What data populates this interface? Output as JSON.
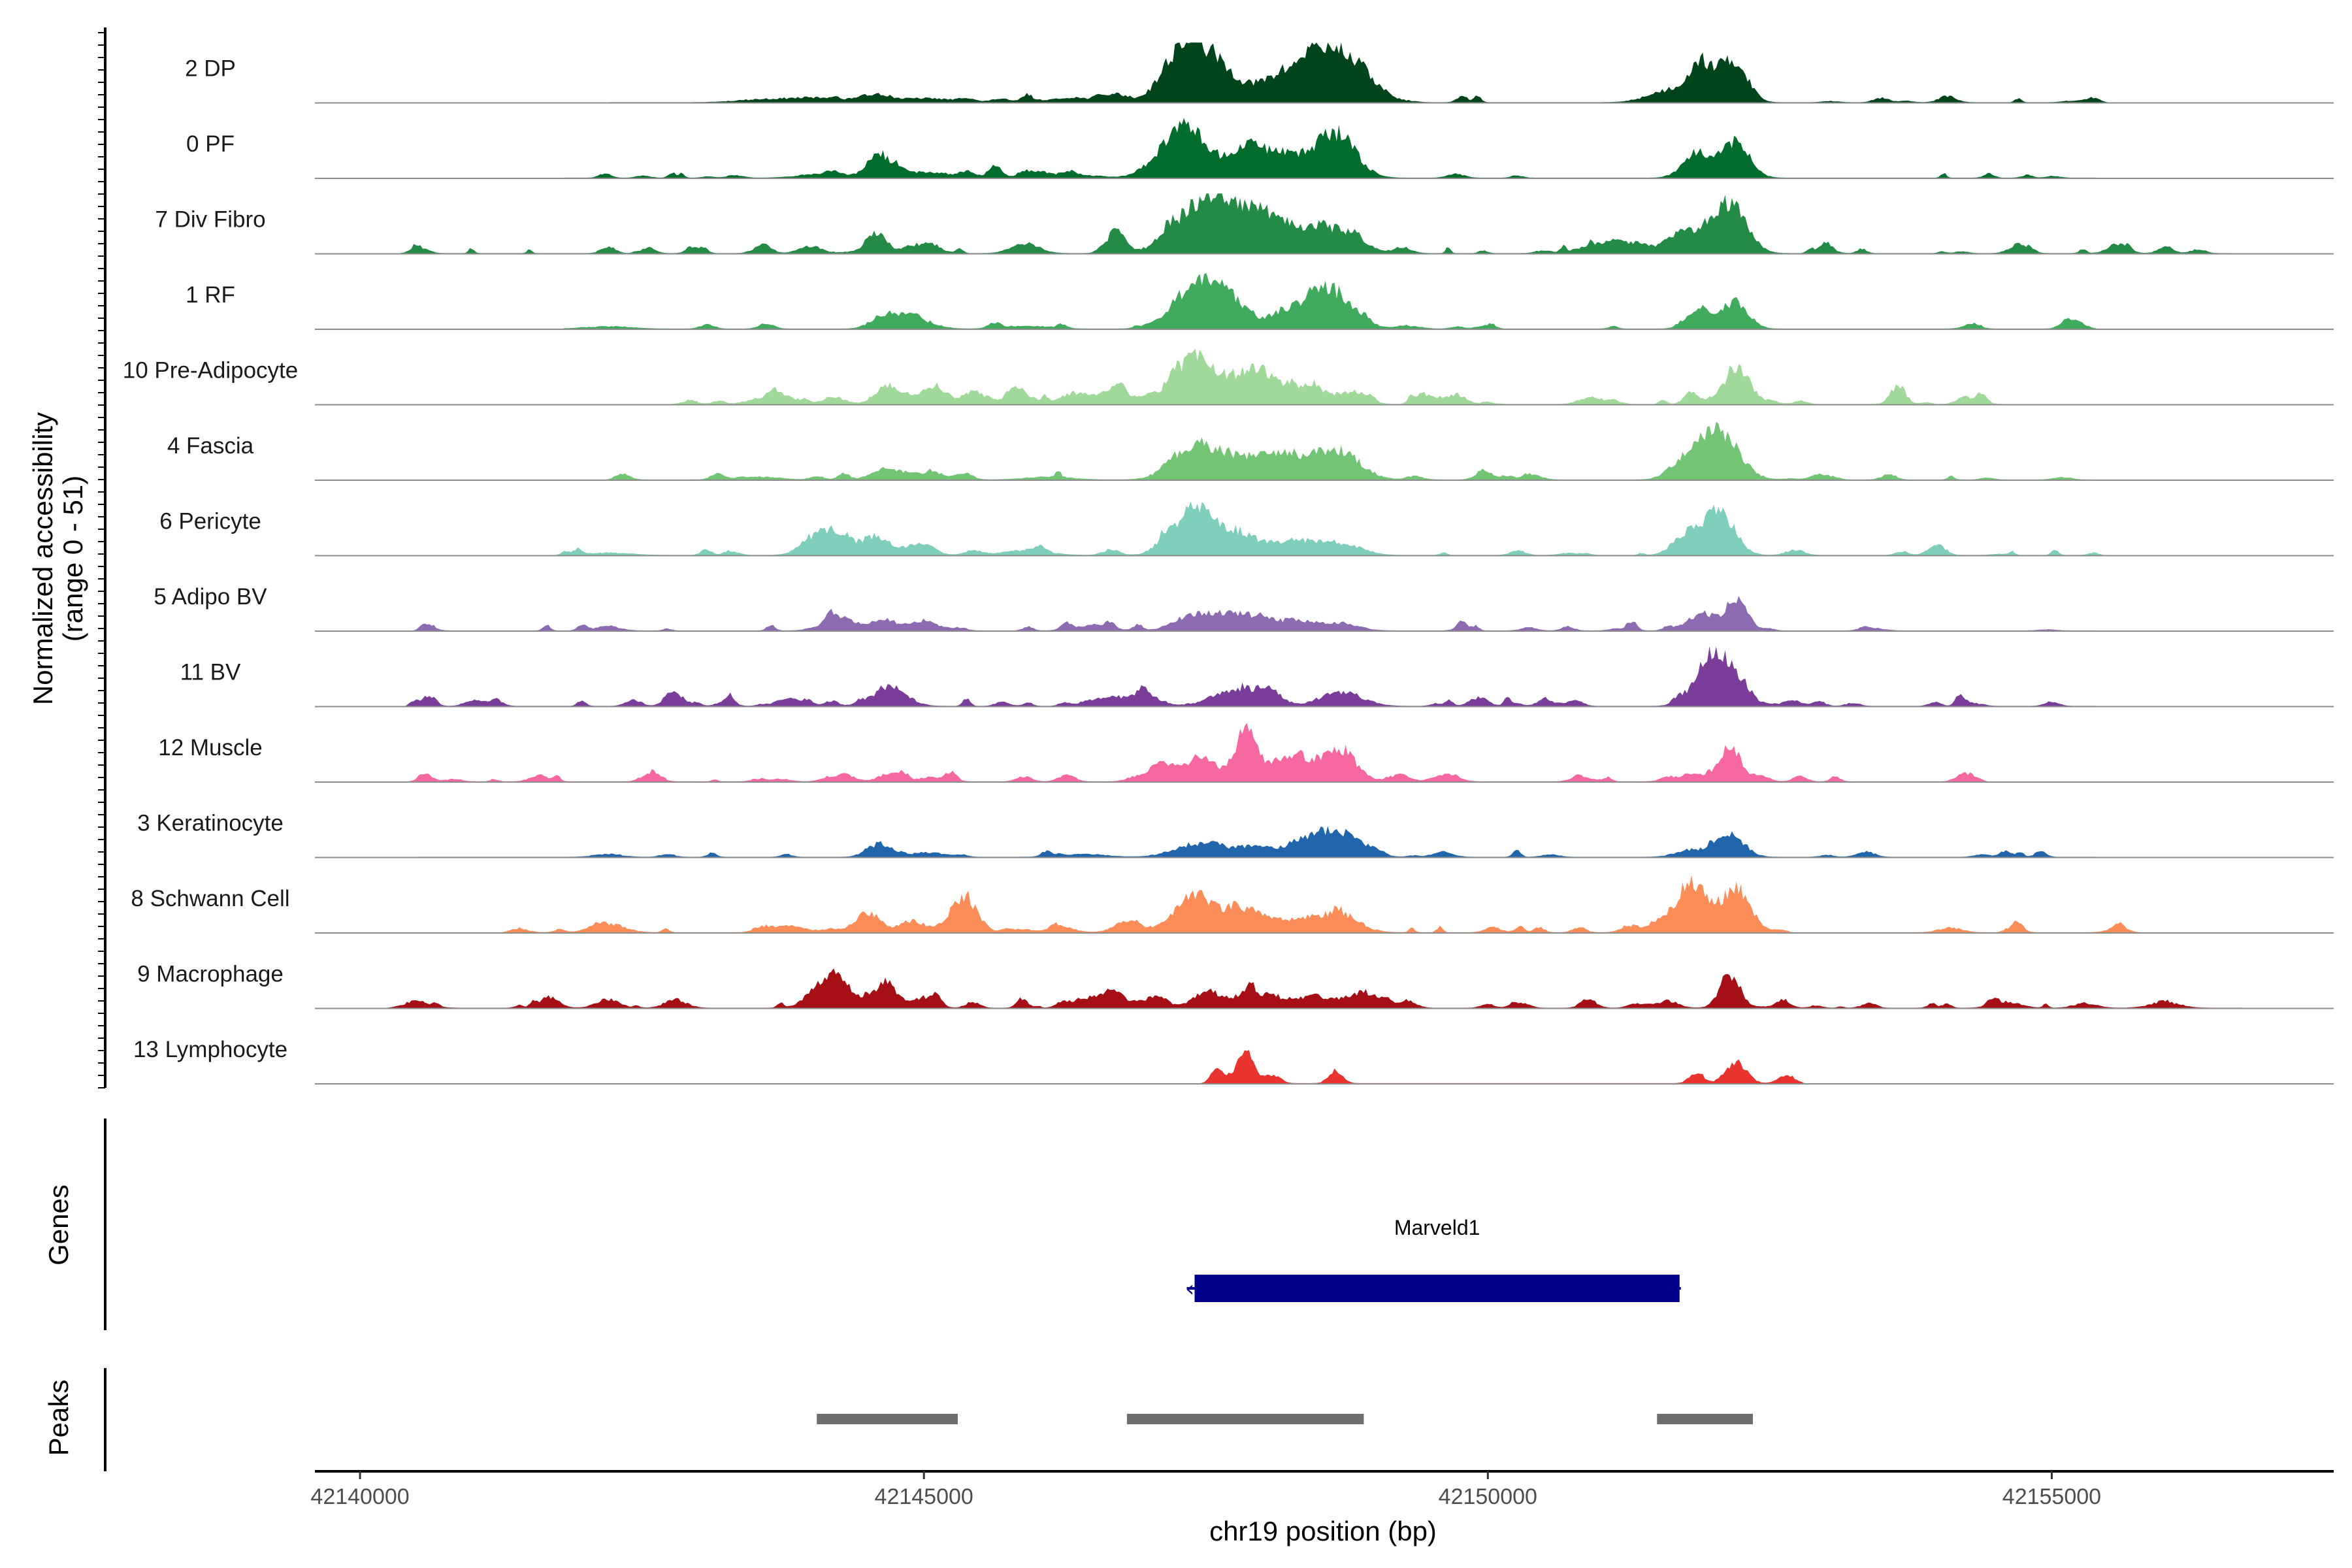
{
  "chart_data": {
    "type": "area",
    "title": "",
    "xlabel": "chr19 position (bp)",
    "ylabel_line1": "Normalized accessibility",
    "ylabel_line2": "(range 0 - 51)",
    "y_range": [
      0,
      51
    ],
    "xlim": [
      42139600,
      42157500
    ],
    "x_ticks": [
      42140000,
      42145000,
      42150000,
      42155000
    ],
    "x_tick_labels": [
      "42140000",
      "42145000",
      "42150000",
      "42155000"
    ],
    "genes_label": "Genes",
    "peaks_label": "Peaks",
    "tracks": [
      {
        "name": "2 DP",
        "color": "#00441b",
        "max": 30,
        "peaks": [
          [
            42144580,
            0.13,
            110
          ],
          [
            42145000,
            0.07,
            250
          ],
          [
            42147300,
            0.9,
            180
          ],
          [
            42147600,
            0.55,
            200
          ],
          [
            42148200,
            0.48,
            200
          ],
          [
            42148600,
            0.85,
            190
          ],
          [
            42148900,
            0.35,
            150
          ],
          [
            42151900,
            0.62,
            120
          ],
          [
            42152200,
            0.68,
            110
          ],
          [
            42151600,
            0.2,
            180
          ],
          [
            42144000,
            0.08,
            250
          ],
          [
            42146200,
            0.05,
            250
          ],
          [
            42143500,
            0.04,
            200
          ]
        ],
        "baseline": [
          42142200,
          42155400
        ],
        "spikes": 28
      },
      {
        "name": "0 PF",
        "color": "#006d2c",
        "max": 30,
        "peaks": [
          [
            42144580,
            0.35,
            90
          ],
          [
            42145000,
            0.1,
            250
          ],
          [
            42147300,
            0.92,
            190
          ],
          [
            42147850,
            0.45,
            170
          ],
          [
            42148200,
            0.4,
            180
          ],
          [
            42148650,
            0.78,
            170
          ],
          [
            42152200,
            0.62,
            120
          ],
          [
            42151850,
            0.4,
            120
          ],
          [
            42144100,
            0.07,
            200
          ],
          [
            42146300,
            0.05,
            250
          ]
        ],
        "baseline": [
          42141800,
          42155400
        ],
        "spikes": 26
      },
      {
        "name": "7 Div Fibro",
        "color": "#238b45",
        "max": 30,
        "peaks": [
          [
            42144580,
            0.3,
            80
          ],
          [
            42144950,
            0.15,
            140
          ],
          [
            42147500,
            0.95,
            250
          ],
          [
            42147950,
            0.55,
            160
          ],
          [
            42148300,
            0.42,
            180
          ],
          [
            42148700,
            0.38,
            180
          ],
          [
            42152150,
            0.9,
            140
          ],
          [
            42151750,
            0.4,
            150
          ],
          [
            42151100,
            0.2,
            220
          ],
          [
            42146700,
            0.28,
            80
          ],
          [
            42145900,
            0.18,
            120
          ],
          [
            42142200,
            0.12,
            60
          ],
          [
            42140500,
            0.06,
            80
          ],
          [
            42144000,
            0.12,
            100
          ],
          [
            42154700,
            0.1,
            80
          ],
          [
            42156300,
            0.07,
            60
          ],
          [
            42155600,
            0.08,
            60
          ]
        ],
        "baseline": [
          42140400,
          42156600
        ],
        "spikes": 50
      },
      {
        "name": "1 RF",
        "color": "#41ab5d",
        "max": 30,
        "peaks": [
          [
            42144650,
            0.25,
            110
          ],
          [
            42144950,
            0.15,
            140
          ],
          [
            42147400,
            0.72,
            190
          ],
          [
            42147700,
            0.45,
            160
          ],
          [
            42148200,
            0.28,
            150
          ],
          [
            42148600,
            0.68,
            190
          ],
          [
            42151900,
            0.35,
            110
          ],
          [
            42152200,
            0.45,
            110
          ],
          [
            42142200,
            0.04,
            200
          ],
          [
            42145900,
            0.05,
            200
          ]
        ],
        "baseline": [
          42141800,
          42155400
        ],
        "spikes": 22
      },
      {
        "name": "10 Pre-Adipocyte",
        "color": "#a1d99b",
        "max": 30,
        "peaks": [
          [
            42144650,
            0.25,
            100
          ],
          [
            42145100,
            0.2,
            130
          ],
          [
            42145450,
            0.15,
            80
          ],
          [
            42145850,
            0.18,
            120
          ],
          [
            42146350,
            0.2,
            130
          ],
          [
            42146700,
            0.28,
            110
          ],
          [
            42147400,
            0.8,
            200
          ],
          [
            42147950,
            0.65,
            160
          ],
          [
            42148400,
            0.3,
            160
          ],
          [
            42148800,
            0.2,
            120
          ],
          [
            42149500,
            0.12,
            100
          ],
          [
            42150900,
            0.1,
            90
          ],
          [
            42151800,
            0.2,
            60
          ],
          [
            42152200,
            0.62,
            110
          ],
          [
            42143800,
            0.1,
            110
          ],
          [
            42144200,
            0.12,
            100
          ],
          [
            42142900,
            0.05,
            80
          ],
          [
            42153600,
            0.08,
            60
          ],
          [
            42154200,
            0.08,
            60
          ]
        ],
        "baseline": [
          42142900,
          42154600
        ],
        "spikes": 60
      },
      {
        "name": "4 Fascia",
        "color": "#74c476",
        "max": 30,
        "peaks": [
          [
            42144650,
            0.2,
            110
          ],
          [
            42145050,
            0.12,
            160
          ],
          [
            42147400,
            0.6,
            190
          ],
          [
            42147800,
            0.35,
            170
          ],
          [
            42148200,
            0.4,
            170
          ],
          [
            42148650,
            0.52,
            200
          ],
          [
            42152050,
            0.82,
            170
          ],
          [
            42151750,
            0.3,
            130
          ],
          [
            42143500,
            0.05,
            200
          ],
          [
            42146100,
            0.05,
            200
          ]
        ],
        "baseline": [
          42142300,
          42155400
        ],
        "spikes": 26
      },
      {
        "name": "6 Pericyte",
        "color": "#7fcdbb",
        "max": 30,
        "peaks": [
          [
            42144150,
            0.45,
            160
          ],
          [
            42144600,
            0.3,
            100
          ],
          [
            42144950,
            0.2,
            120
          ],
          [
            42147400,
            0.78,
            180
          ],
          [
            42147800,
            0.35,
            180
          ],
          [
            42148300,
            0.25,
            180
          ],
          [
            42148700,
            0.2,
            170
          ],
          [
            42152050,
            0.78,
            130
          ],
          [
            42151750,
            0.35,
            110
          ],
          [
            42145900,
            0.08,
            200
          ],
          [
            42142200,
            0.04,
            200
          ]
        ],
        "baseline": [
          42141800,
          42155400
        ],
        "spikes": 28
      },
      {
        "name": "5 Adipo BV",
        "color": "#8c6bb1",
        "max": 30,
        "peaks": [
          [
            42144250,
            0.25,
            140
          ],
          [
            42144650,
            0.2,
            100
          ],
          [
            42145000,
            0.18,
            120
          ],
          [
            42147450,
            0.3,
            190
          ],
          [
            42147850,
            0.25,
            170
          ],
          [
            42148300,
            0.18,
            170
          ],
          [
            42148700,
            0.12,
            150
          ],
          [
            42151900,
            0.3,
            120
          ],
          [
            42152200,
            0.5,
            90
          ],
          [
            42140600,
            0.12,
            60
          ],
          [
            42142200,
            0.08,
            100
          ],
          [
            42146500,
            0.1,
            150
          ]
        ],
        "baseline": [
          42140500,
          42155400
        ],
        "spikes": 30
      },
      {
        "name": "11 BV",
        "color": "#7a3d9a",
        "max": 30,
        "peaks": [
          [
            42144700,
            0.35,
            140
          ],
          [
            42142800,
            0.18,
            80
          ],
          [
            42143800,
            0.12,
            110
          ],
          [
            42146600,
            0.15,
            100
          ],
          [
            42147000,
            0.15,
            120
          ],
          [
            42147700,
            0.25,
            160
          ],
          [
            42148050,
            0.32,
            110
          ],
          [
            42148700,
            0.25,
            180
          ],
          [
            42149900,
            0.1,
            80
          ],
          [
            42151700,
            0.12,
            60
          ],
          [
            42152050,
            0.95,
            160
          ],
          [
            42140600,
            0.15,
            60
          ],
          [
            42141200,
            0.12,
            60
          ],
          [
            42155000,
            0.08,
            60
          ],
          [
            42145700,
            0.08,
            60
          ],
          [
            42150500,
            0.07,
            80
          ]
        ],
        "baseline": [
          42140400,
          42155400
        ],
        "spikes": 50
      },
      {
        "name": "12 Muscle",
        "color": "#f768a1",
        "max": 30,
        "peaks": [
          [
            42147100,
            0.3,
            110
          ],
          [
            42147450,
            0.45,
            130
          ],
          [
            42147850,
            0.88,
            100
          ],
          [
            42148250,
            0.45,
            170
          ],
          [
            42148700,
            0.5,
            140
          ],
          [
            42144300,
            0.12,
            90
          ],
          [
            42144700,
            0.15,
            90
          ],
          [
            42145050,
            0.08,
            90
          ],
          [
            42152150,
            0.6,
            90
          ],
          [
            42151800,
            0.15,
            80
          ],
          [
            42152400,
            0.1,
            70
          ],
          [
            42140600,
            0.08,
            60
          ],
          [
            42154200,
            0.08,
            60
          ],
          [
            42146300,
            0.06,
            60
          ],
          [
            42149600,
            0.06,
            60
          ]
        ],
        "baseline": [
          42140500,
          42154400
        ],
        "spikes": 40
      },
      {
        "name": "3 Keratinocyte",
        "color": "#2166ac",
        "max": 30,
        "peaks": [
          [
            42144650,
            0.15,
            120
          ],
          [
            42145050,
            0.08,
            130
          ],
          [
            42147400,
            0.22,
            190
          ],
          [
            42147900,
            0.18,
            180
          ],
          [
            42148400,
            0.28,
            180
          ],
          [
            42148700,
            0.38,
            170
          ],
          [
            42152150,
            0.4,
            120
          ],
          [
            42151800,
            0.12,
            130
          ],
          [
            42142200,
            0.05,
            120
          ],
          [
            42146400,
            0.05,
            200
          ]
        ],
        "baseline": [
          42140500,
          42155400
        ],
        "spikes": 24
      },
      {
        "name": "8 Schwann Cell",
        "color": "#fc8d59",
        "max": 30,
        "peaks": [
          [
            42144500,
            0.35,
            110
          ],
          [
            42144900,
            0.2,
            110
          ],
          [
            42145350,
            0.58,
            120
          ],
          [
            42146800,
            0.2,
            110
          ],
          [
            42147400,
            0.55,
            190
          ],
          [
            42147850,
            0.4,
            170
          ],
          [
            42148350,
            0.22,
            170
          ],
          [
            42148700,
            0.3,
            160
          ],
          [
            42151800,
            0.8,
            140
          ],
          [
            42152200,
            0.75,
            130
          ],
          [
            42142200,
            0.15,
            140
          ],
          [
            42143800,
            0.12,
            140
          ],
          [
            42146200,
            0.1,
            120
          ],
          [
            42154100,
            0.08,
            100
          ],
          [
            42155600,
            0.06,
            100
          ]
        ],
        "baseline": [
          42141400,
          42155600
        ],
        "spikes": 40
      },
      {
        "name": "9 Macrophage",
        "color": "#a50f15",
        "max": 30,
        "peaks": [
          [
            42144150,
            0.55,
            140
          ],
          [
            42144650,
            0.35,
            100
          ],
          [
            42145000,
            0.18,
            100
          ],
          [
            42146400,
            0.15,
            80
          ],
          [
            42146650,
            0.32,
            110
          ],
          [
            42147050,
            0.15,
            110
          ],
          [
            42147550,
            0.25,
            140
          ],
          [
            42147950,
            0.2,
            120
          ],
          [
            42148450,
            0.18,
            180
          ],
          [
            42148850,
            0.18,
            150
          ],
          [
            42152150,
            0.55,
            90
          ],
          [
            42151600,
            0.12,
            90
          ],
          [
            42140500,
            0.12,
            120
          ],
          [
            42141700,
            0.08,
            90
          ],
          [
            42142200,
            0.15,
            100
          ],
          [
            42142800,
            0.1,
            100
          ],
          [
            42154600,
            0.1,
            120
          ],
          [
            42155300,
            0.08,
            100
          ],
          [
            42156000,
            0.1,
            130
          ],
          [
            42150000,
            0.06,
            60
          ],
          [
            42149300,
            0.08,
            70
          ]
        ],
        "baseline": [
          42140400,
          42156700
        ],
        "spikes": 60
      },
      {
        "name": "13 Lymphocyte",
        "color": "#e8332f",
        "max": 30,
        "peaks": [
          [
            42147850,
            0.55,
            80
          ],
          [
            42147600,
            0.22,
            60
          ],
          [
            42148100,
            0.15,
            60
          ],
          [
            42148650,
            0.22,
            60
          ],
          [
            42152200,
            0.38,
            90
          ],
          [
            42151850,
            0.2,
            60
          ],
          [
            42152650,
            0.15,
            70
          ]
        ],
        "baseline": [
          42147500,
          42152800
        ],
        "spikes": 0
      }
    ],
    "genes": [
      {
        "name": "Marveld1",
        "start": 42147400,
        "end": 42151700,
        "color": "#00008b",
        "strand": "-"
      }
    ],
    "peaks": [
      {
        "start": 42144050,
        "end": 42145300
      },
      {
        "start": 42146800,
        "end": 42148900
      },
      {
        "start": 42151500,
        "end": 42152350
      }
    ]
  }
}
